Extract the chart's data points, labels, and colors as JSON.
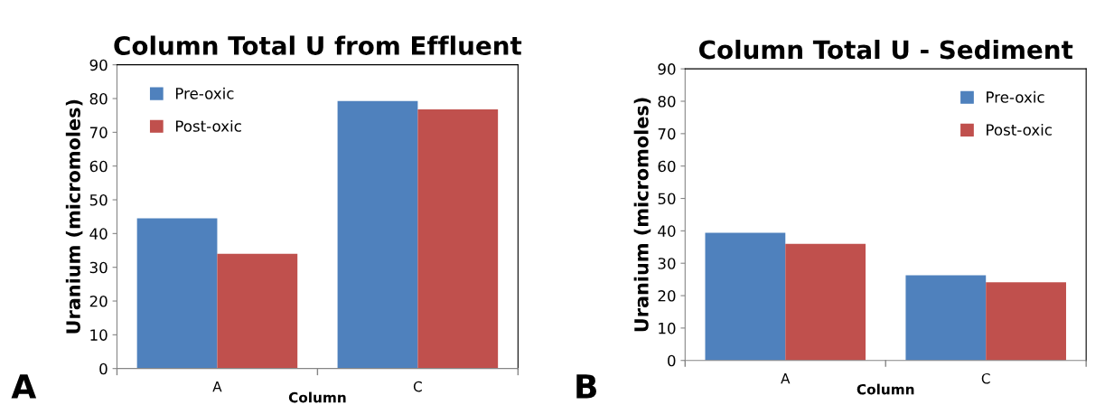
{
  "chart_data": [
    {
      "type": "bar",
      "title": "Column Total U from Effluent",
      "xlabel": "Column",
      "ylabel": "Uranium (micromoles)",
      "categories": [
        "A",
        "C"
      ],
      "series": [
        {
          "name": "Pre-oxic",
          "color": "#4f81bd",
          "values": [
            44.5,
            79.3
          ]
        },
        {
          "name": "Post-oxic",
          "color": "#c0504d",
          "values": [
            34,
            76.8
          ]
        }
      ],
      "ylim": [
        0,
        90
      ],
      "yticks": [
        0,
        10,
        20,
        30,
        40,
        50,
        60,
        70,
        80,
        90
      ],
      "grid": false,
      "legend": "top left",
      "annotations": [
        "A"
      ]
    },
    {
      "type": "bar",
      "title": "Column Total U - Sediment",
      "xlabel": "Column",
      "ylabel": "Uranium (micromoles)",
      "categories": [
        "A",
        "C"
      ],
      "series": [
        {
          "name": "Pre-oxic",
          "color": "#4f81bd",
          "values": [
            39.4,
            26.3
          ]
        },
        {
          "name": "Post-oxic",
          "color": "#c0504d",
          "values": [
            36,
            24.1
          ]
        }
      ],
      "ylim": [
        0,
        90
      ],
      "yticks": [
        0,
        10,
        20,
        30,
        40,
        50,
        60,
        70,
        80,
        90
      ],
      "grid": false,
      "legend": "top right",
      "annotations": [
        "B"
      ]
    }
  ]
}
